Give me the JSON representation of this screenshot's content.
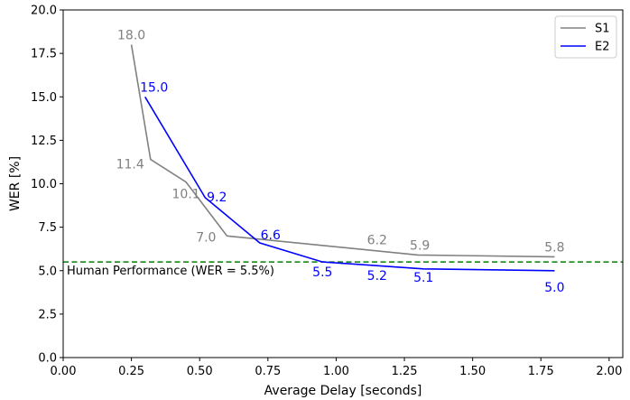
{
  "chart_data": {
    "type": "line",
    "title": "",
    "xlabel": "Average Delay [seconds]",
    "ylabel": "WER [%]",
    "xlim": [
      0.0,
      2.05
    ],
    "ylim": [
      0.0,
      20.0
    ],
    "xticks": [
      "0.00",
      "0.25",
      "0.50",
      "0.75",
      "1.00",
      "1.25",
      "1.50",
      "1.75",
      "2.00"
    ],
    "yticks": [
      "0.0",
      "2.5",
      "5.0",
      "7.5",
      "10.0",
      "12.5",
      "15.0",
      "17.5",
      "20.0"
    ],
    "grid": false,
    "legend_position": "top-right",
    "series": [
      {
        "name": "S1",
        "color": "#808080",
        "x": [
          0.25,
          0.32,
          0.45,
          0.6,
          1.3,
          1.8
        ],
        "y": [
          18.0,
          11.4,
          10.1,
          7.0,
          5.9,
          5.8
        ],
        "labels": [
          {
            "text": "18.0",
            "x": 0.25,
            "y": 18.0
          },
          {
            "text": "11.4",
            "x": 0.32,
            "y": 11.4
          },
          {
            "text": "10.1",
            "x": 0.45,
            "y": 10.1
          },
          {
            "text": "7.0",
            "x": 0.6,
            "y": 7.0
          },
          {
            "text": "6.2",
            "x": 1.15,
            "y": 6.2
          },
          {
            "text": "5.9",
            "x": 1.3,
            "y": 5.9
          },
          {
            "text": "5.8",
            "x": 1.8,
            "y": 5.8
          }
        ]
      },
      {
        "name": "E2",
        "color": "#0000ff",
        "x": [
          0.3,
          0.52,
          0.72,
          0.95,
          1.32,
          1.8
        ],
        "y": [
          15.0,
          9.2,
          6.6,
          5.5,
          5.1,
          5.0
        ],
        "labels": [
          {
            "text": "15.0",
            "x": 0.3,
            "y": 15.0
          },
          {
            "text": "9.2",
            "x": 0.52,
            "y": 9.2
          },
          {
            "text": "6.6",
            "x": 0.72,
            "y": 6.6
          },
          {
            "text": "5.5",
            "x": 0.95,
            "y": 5.5
          },
          {
            "text": "5.2",
            "x": 1.15,
            "y": 5.2
          },
          {
            "text": "5.1",
            "x": 1.32,
            "y": 5.1
          },
          {
            "text": "5.0",
            "x": 1.8,
            "y": 5.0
          }
        ]
      }
    ],
    "reference_line": {
      "y": 5.5,
      "color": "#008000",
      "style": "dashed",
      "label": "Human Performance (WER = 5.5%)"
    }
  }
}
